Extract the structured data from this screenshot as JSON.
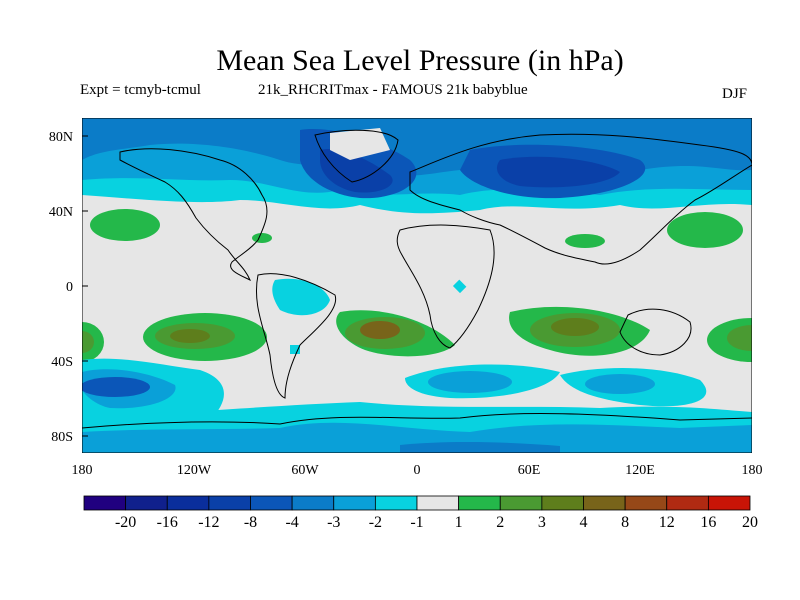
{
  "title": "Mean Sea Level Pressure (in hPa)",
  "subtitle_left": "Expt = tcmyb-tcmul",
  "subtitle_center": "21k_RHCRITmax - FAMOUS 21k babyblue",
  "season": "DJF",
  "map": {
    "lat_ticks": [
      "80N",
      "40N",
      "0",
      "40S",
      "80S"
    ],
    "lon_ticks": [
      "180",
      "120W",
      "60W",
      "0",
      "60E",
      "120E",
      "180"
    ],
    "background_color": "#e6e6e6"
  },
  "colorbar": {
    "labels": [
      "-20",
      "-16",
      "-12",
      "-8",
      "-4",
      "-3",
      "-2",
      "-1",
      "1",
      "2",
      "3",
      "4",
      "8",
      "12",
      "16",
      "20"
    ],
    "colors": [
      "#200080",
      "#10208c",
      "#0a2e9c",
      "#0a40a8",
      "#0b56b8",
      "#0b7cc8",
      "#0aa0d8",
      "#08d2e0",
      "#e6e6e6",
      "#24b84a",
      "#4a9a32",
      "#5e7e1c",
      "#78641a",
      "#964818",
      "#b02a12",
      "#c81406"
    ]
  }
}
